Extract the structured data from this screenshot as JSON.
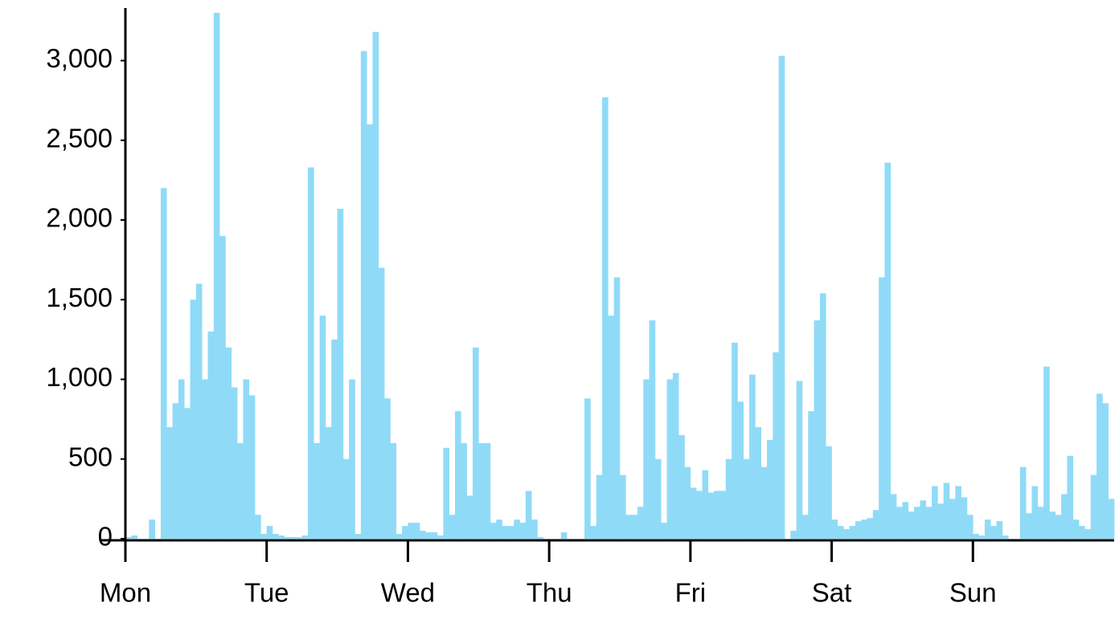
{
  "chart_data": {
    "type": "bar",
    "categories": [
      "Mon",
      null,
      null,
      null,
      null,
      null,
      null,
      null,
      null,
      null,
      null,
      null,
      null,
      null,
      null,
      null,
      null,
      null,
      null,
      null,
      null,
      null,
      null,
      null,
      "Tue",
      null,
      null,
      null,
      null,
      null,
      null,
      null,
      null,
      null,
      null,
      null,
      null,
      null,
      null,
      null,
      null,
      null,
      null,
      null,
      null,
      null,
      null,
      null,
      "Wed",
      null,
      null,
      null,
      null,
      null,
      null,
      null,
      null,
      null,
      null,
      null,
      null,
      null,
      null,
      null,
      null,
      null,
      null,
      null,
      null,
      null,
      null,
      null,
      "Thu",
      null,
      null,
      null,
      null,
      null,
      null,
      null,
      null,
      null,
      null,
      null,
      null,
      null,
      null,
      null,
      null,
      null,
      null,
      null,
      null,
      null,
      null,
      null,
      "Fri",
      null,
      null,
      null,
      null,
      null,
      null,
      null,
      null,
      null,
      null,
      null,
      null,
      null,
      null,
      null,
      null,
      null,
      null,
      null,
      null,
      null,
      null,
      null,
      "Sat",
      null,
      null,
      null,
      null,
      null,
      null,
      null,
      null,
      null,
      null,
      null,
      null,
      null,
      null,
      null,
      null,
      null,
      null,
      null,
      null,
      null,
      null,
      null,
      "Sun",
      null,
      null,
      null,
      null,
      null,
      null,
      null,
      null,
      null,
      null,
      null,
      null,
      null,
      null,
      null,
      null,
      null,
      null,
      null,
      null,
      null,
      null,
      null
    ],
    "values": [
      10,
      20,
      0,
      0,
      120,
      0,
      2200,
      700,
      850,
      1000,
      820,
      1500,
      1600,
      1000,
      1300,
      3300,
      1900,
      1200,
      950,
      600,
      1000,
      900,
      150,
      30,
      80,
      30,
      20,
      10,
      10,
      10,
      20,
      2330,
      600,
      1400,
      700,
      1250,
      2070,
      500,
      1000,
      30,
      3060,
      2600,
      3180,
      1700,
      880,
      600,
      30,
      80,
      100,
      100,
      50,
      40,
      40,
      20,
      570,
      150,
      800,
      600,
      270,
      1200,
      600,
      600,
      100,
      120,
      80,
      80,
      120,
      100,
      300,
      120,
      10,
      0,
      0,
      0,
      40,
      0,
      0,
      0,
      880,
      80,
      400,
      2770,
      1400,
      1640,
      400,
      150,
      150,
      200,
      1000,
      1370,
      500,
      100,
      1000,
      1040,
      650,
      450,
      320,
      300,
      430,
      290,
      300,
      300,
      500,
      1230,
      860,
      500,
      1030,
      700,
      450,
      620,
      1170,
      3030,
      0,
      50,
      990,
      150,
      800,
      1370,
      1540,
      580,
      120,
      80,
      60,
      80,
      110,
      120,
      130,
      180,
      1640,
      2360,
      280,
      200,
      230,
      170,
      200,
      240,
      200,
      330,
      220,
      350,
      250,
      330,
      260,
      150,
      30,
      20,
      120,
      80,
      110,
      20,
      0,
      0,
      450,
      160,
      330,
      200,
      1080,
      170,
      150,
      280,
      520,
      120,
      80,
      60,
      400,
      910,
      850,
      250
    ],
    "color": "#8fdbf7",
    "ylim": [
      0,
      3330
    ],
    "yticks": [
      0,
      500,
      {
        "value": 1000,
        "label": "1,000"
      },
      {
        "value": 1500,
        "label": "1,500"
      },
      {
        "value": 2000,
        "label": "2,000"
      },
      {
        "value": 2500,
        "label": "2,500"
      },
      {
        "value": 3000,
        "label": "3,000"
      }
    ]
  }
}
